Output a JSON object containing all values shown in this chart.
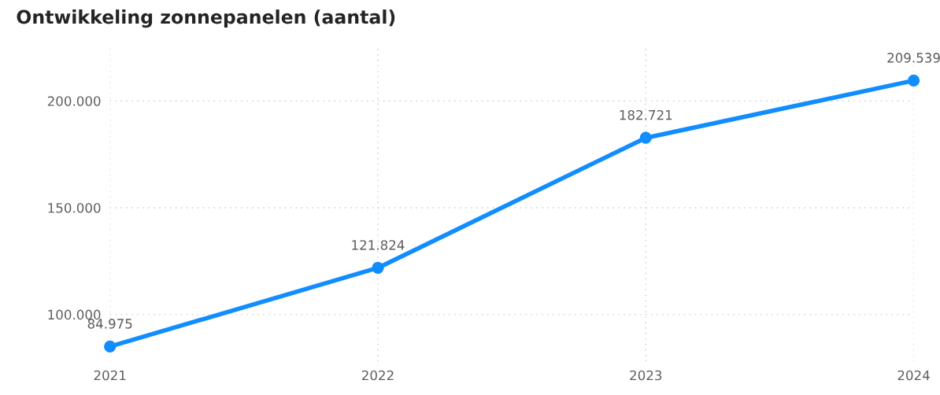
{
  "chart_data": {
    "type": "line",
    "title": "Ontwikkeling zonnepanelen (aantal)",
    "x": [
      2021,
      2022,
      2023,
      2024
    ],
    "series": [
      {
        "color": "#118dff",
        "values": [
          84975,
          121824,
          182721,
          209539
        ],
        "value_labels": [
          "84.975",
          "121.824",
          "182.721",
          "209.539"
        ]
      }
    ],
    "xlim": [
      2021,
      2024
    ],
    "xticks": [
      2021,
      2022,
      2023,
      2024
    ],
    "ylim": [
      78000,
      226000
    ],
    "yticks": [
      {
        "value": 100000,
        "label": "100.000"
      },
      {
        "value": 150000,
        "label": "150.000"
      },
      {
        "value": 200000,
        "label": "200.000"
      }
    ],
    "grid": true,
    "marker": "circle",
    "line_style": "solid"
  }
}
